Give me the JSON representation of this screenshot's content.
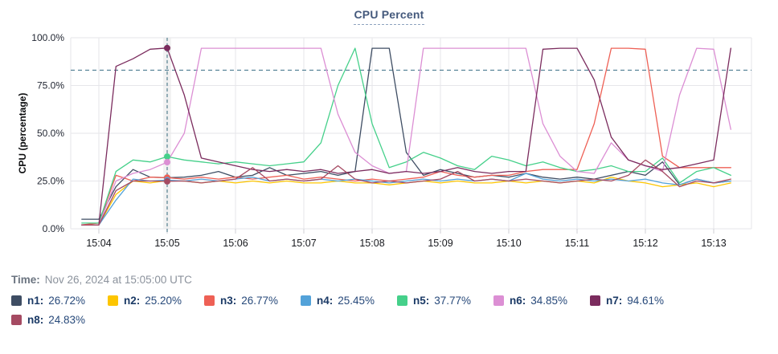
{
  "title": "CPU Percent",
  "time_row": {
    "label": "Time:",
    "value": "Nov 26, 2024 at 15:05:00 UTC"
  },
  "chart_data": {
    "type": "line",
    "title": "CPU Percent",
    "ylabel": "CPU (percentage)",
    "ylim": [
      0,
      100
    ],
    "grid": true,
    "threshold": {
      "value": 83,
      "style": "dashed",
      "color": "#4e7d92"
    },
    "cursor": {
      "minute": 1,
      "label": "15:05",
      "color": "#55808f"
    },
    "y_ticks": [
      {
        "value": 100,
        "label": "100.0%"
      },
      {
        "value": 75,
        "label": "75.0%"
      },
      {
        "value": 50,
        "label": "50.0%"
      },
      {
        "value": 25,
        "label": "25.0%"
      },
      {
        "value": 0,
        "label": "0.0%"
      }
    ],
    "x_ticks": [
      {
        "minute": 0,
        "label": "15:04"
      },
      {
        "minute": 1,
        "label": "15:05"
      },
      {
        "minute": 2,
        "label": "15:06"
      },
      {
        "minute": 3,
        "label": "15:07"
      },
      {
        "minute": 4,
        "label": "15:08"
      },
      {
        "minute": 5,
        "label": "15:09"
      },
      {
        "minute": 6,
        "label": "15:10"
      },
      {
        "minute": 7,
        "label": "15:11"
      },
      {
        "minute": 8,
        "label": "15:12"
      },
      {
        "minute": 9,
        "label": "15:13"
      }
    ],
    "x_minutes": [
      -0.25,
      0,
      0.25,
      0.5,
      0.75,
      1,
      1.25,
      1.5,
      1.75,
      2,
      2.25,
      2.5,
      2.75,
      3,
      3.25,
      3.5,
      3.75,
      4,
      4.25,
      4.5,
      4.75,
      5,
      5.25,
      5.5,
      5.75,
      6,
      6.25,
      6.5,
      6.75,
      7,
      7.25,
      7.5,
      7.75,
      8,
      8.25,
      8.5,
      8.75,
      9,
      9.25
    ],
    "series": [
      {
        "name": "n1",
        "color": "#3e4d63",
        "cursor_value": 26.72,
        "values": [
          5,
          5,
          22,
          31,
          27,
          26.72,
          27,
          28,
          30,
          27,
          28,
          32,
          28,
          29,
          30,
          28,
          30,
          94.5,
          94.5,
          40,
          28,
          31,
          29,
          27,
          28,
          27,
          29,
          27,
          26,
          27,
          26,
          28,
          30,
          28,
          35,
          23,
          26,
          24,
          25
        ]
      },
      {
        "name": "n2",
        "color": "#fdc500",
        "cursor_value": 25.2,
        "values": [
          2,
          2,
          18,
          25,
          24,
          25.2,
          25,
          24,
          25,
          24,
          25,
          24,
          25,
          24,
          24,
          25,
          24,
          24,
          23,
          24,
          25,
          24,
          25,
          24,
          24,
          25,
          24,
          25,
          24,
          25,
          24,
          27,
          25,
          24,
          22,
          23,
          24,
          22,
          24
        ]
      },
      {
        "name": "n3",
        "color": "#ee6055",
        "cursor_value": 26.77,
        "values": [
          2,
          3,
          28,
          25,
          27,
          26.77,
          26,
          27,
          26,
          27,
          26,
          27,
          28,
          26,
          27,
          26,
          25,
          26,
          25,
          26,
          27,
          30,
          28,
          27,
          28,
          28,
          30,
          31,
          31,
          31,
          55,
          94.5,
          94.5,
          94,
          38,
          32,
          32,
          32,
          32
        ]
      },
      {
        "name": "n4",
        "color": "#53a2d9",
        "cursor_value": 25.45,
        "values": [
          2,
          2,
          15,
          26,
          25,
          25.45,
          25,
          26,
          25,
          26,
          27,
          25,
          26,
          25,
          26,
          25,
          26,
          25,
          24,
          25,
          26,
          25,
          26,
          25,
          26,
          25,
          29,
          26,
          25,
          26,
          25,
          26,
          25,
          26,
          24,
          23,
          26,
          24,
          25
        ]
      },
      {
        "name": "n5",
        "color": "#45d08a",
        "cursor_value": 37.77,
        "values": [
          3,
          3,
          30,
          36,
          35,
          37.77,
          36,
          35,
          34,
          35,
          34,
          33,
          34,
          35,
          45,
          75,
          94.5,
          55,
          32,
          35,
          40,
          37,
          33,
          31,
          38,
          36,
          33,
          35,
          32,
          30,
          31,
          33,
          30,
          30,
          37,
          24,
          30,
          32,
          28
        ]
      },
      {
        "name": "n6",
        "color": "#dc8fd4",
        "cursor_value": 34.85,
        "values": [
          2,
          2,
          25,
          29,
          31,
          34.85,
          50,
          94.5,
          94.5,
          94.5,
          94.5,
          94.5,
          94.5,
          94.5,
          94.5,
          60,
          40,
          33,
          29,
          30,
          94.5,
          94.5,
          94.5,
          94.5,
          94.5,
          94.5,
          94.5,
          55,
          38,
          30,
          29,
          45,
          36,
          33,
          30,
          70,
          94.5,
          94,
          52
        ]
      },
      {
        "name": "n7",
        "color": "#7b2c5e",
        "cursor_value": 94.61,
        "values": [
          2,
          2,
          85,
          89,
          94,
          94.61,
          70,
          37,
          35,
          33,
          31,
          30,
          31,
          30,
          31,
          29,
          30,
          31,
          29,
          30,
          29,
          30,
          32,
          30,
          29,
          30,
          30,
          94,
          94.5,
          94.5,
          78,
          48,
          36,
          33,
          31,
          32,
          34,
          36,
          94.5
        ]
      },
      {
        "name": "n8",
        "color": "#a54a62",
        "cursor_value": 24.83,
        "values": [
          2,
          2,
          20,
          25,
          25,
          24.83,
          25,
          24,
          25,
          26,
          32,
          25,
          26,
          25,
          26,
          33,
          26,
          24,
          25,
          24,
          25,
          26,
          30,
          25,
          26,
          25,
          26,
          25,
          24,
          25,
          26,
          25,
          28,
          36,
          30,
          22,
          25,
          24,
          26
        ]
      }
    ]
  },
  "legend": {
    "items": [
      {
        "name": "n1",
        "label": "n1:",
        "value": "26.72%",
        "color": "#3e4d63"
      },
      {
        "name": "n2",
        "label": "n2:",
        "value": "25.20%",
        "color": "#fdc500"
      },
      {
        "name": "n3",
        "label": "n3:",
        "value": "26.77%",
        "color": "#ee6055"
      },
      {
        "name": "n4",
        "label": "n4:",
        "value": "25.45%",
        "color": "#53a2d9"
      },
      {
        "name": "n5",
        "label": "n5:",
        "value": "37.77%",
        "color": "#45d08a"
      },
      {
        "name": "n6",
        "label": "n6:",
        "value": "34.85%",
        "color": "#dc8fd4"
      },
      {
        "name": "n7",
        "label": "n7:",
        "value": "94.61%",
        "color": "#7b2c5e"
      },
      {
        "name": "n8",
        "label": "n8:",
        "value": "24.83%",
        "color": "#a54a62"
      }
    ]
  }
}
